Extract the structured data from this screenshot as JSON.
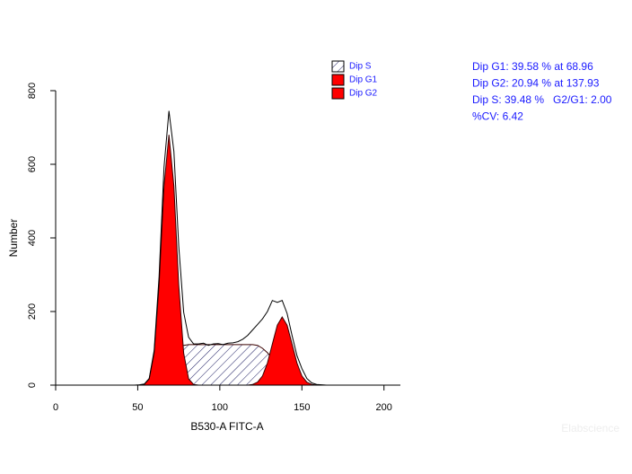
{
  "chart_data": {
    "type": "line",
    "x_label": "B530-A FITC-A",
    "y_label": "Number",
    "xlim": [
      0,
      210
    ],
    "xticks": [
      0,
      50,
      100,
      150,
      200
    ],
    "ylim": [
      0,
      800
    ],
    "yticks": [
      0,
      200,
      400,
      600,
      800
    ],
    "x": [
      39,
      42,
      45,
      48,
      51,
      54,
      57,
      60,
      63,
      66,
      69,
      72,
      75,
      78,
      81,
      84,
      87,
      90,
      93,
      96,
      99,
      102,
      105,
      108,
      111,
      114,
      117,
      120,
      123,
      126,
      129,
      132,
      135,
      138,
      141,
      144,
      147,
      150,
      153,
      156,
      159,
      162,
      165,
      168,
      171,
      174,
      177,
      180
    ],
    "series": [
      {
        "name": "Dip S",
        "fill": "hatch",
        "color": "#1a1a60",
        "values": [
          0,
          0,
          0,
          0,
          0,
          0,
          0,
          5,
          20,
          45,
          70,
          90,
          103,
          108,
          110,
          110,
          110,
          110,
          110,
          110,
          110,
          110,
          110,
          110,
          110,
          110,
          110,
          110,
          108,
          100,
          88,
          72,
          55,
          38,
          24,
          13,
          6,
          2,
          0,
          0,
          0,
          0,
          0,
          0,
          0,
          0,
          0,
          0
        ]
      },
      {
        "name": "Dip G1",
        "fill": "solid",
        "color": "#ff0000",
        "values": [
          0,
          0,
          0,
          0,
          0,
          2,
          17,
          87,
          272,
          541,
          680,
          541,
          272,
          87,
          17,
          2,
          0,
          0,
          0,
          0,
          0,
          0,
          0,
          0,
          0,
          0,
          0,
          0,
          0,
          0,
          0,
          0,
          0,
          0,
          0,
          0,
          0,
          0,
          0,
          0,
          0,
          0,
          0,
          0,
          0,
          0,
          0,
          0
        ]
      },
      {
        "name": "Dip G2",
        "fill": "solid",
        "color": "#ff0000",
        "values": [
          0,
          0,
          0,
          0,
          0,
          0,
          0,
          0,
          0,
          0,
          0,
          0,
          0,
          0,
          0,
          0,
          0,
          0,
          0,
          0,
          0,
          0,
          0,
          0,
          0,
          0,
          0,
          2,
          8,
          25,
          60,
          112,
          163,
          185,
          163,
          112,
          60,
          25,
          8,
          2,
          0,
          0,
          0,
          0,
          0,
          0,
          0,
          0
        ]
      },
      {
        "fill": "none",
        "color": "#000000",
        "values": [
          0,
          0,
          0,
          0,
          1,
          3,
          18,
          94,
          295,
          592,
          745,
          635,
          378,
          198,
          130,
          112,
          112,
          114,
          108,
          112,
          113,
          110,
          114,
          115,
          118,
          125,
          135,
          150,
          165,
          180,
          200,
          230,
          225,
          230,
          195,
          135,
          80,
          45,
          18,
          6,
          2,
          1,
          0,
          0,
          0,
          0,
          0,
          0
        ]
      }
    ],
    "annotations": [
      "Dip G1: 39.58 % at 68.96",
      "Dip G2: 20.94 % at 137.93",
      "Dip S: 39.48 %   G2/G1: 2.00",
      "%CV: 6.42"
    ],
    "watermark": "Elabscience"
  }
}
